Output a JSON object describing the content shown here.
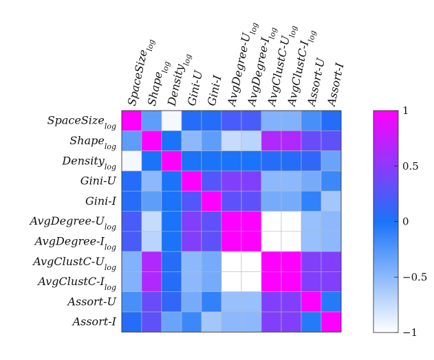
{
  "chart_data": {
    "type": "heatmap",
    "title": "",
    "xlabel": "",
    "ylabel": "",
    "labels": [
      {
        "base": "SpaceSize",
        "sub": "log"
      },
      {
        "base": "Shape",
        "sub": "log"
      },
      {
        "base": "Density",
        "sub": "log"
      },
      {
        "base": "Gini-U",
        "sub": ""
      },
      {
        "base": "Gini-I",
        "sub": ""
      },
      {
        "base": "AvgDegree-U",
        "sub": "log"
      },
      {
        "base": "AvgDegree-I",
        "sub": "log"
      },
      {
        "base": "AvgClustC-U",
        "sub": "log"
      },
      {
        "base": "AvgClustC-I",
        "sub": "log"
      },
      {
        "base": "Assort-U",
        "sub": ""
      },
      {
        "base": "Assort-I",
        "sub": ""
      }
    ],
    "values": [
      [
        1.0,
        -0.3,
        -0.95,
        0.05,
        0.05,
        0.2,
        0.2,
        -0.45,
        -0.45,
        -0.2,
        0.05
      ],
      [
        -0.3,
        1.0,
        0.0,
        -0.5,
        -0.3,
        -0.75,
        -0.7,
        0.65,
        0.65,
        0.35,
        0.3
      ],
      [
        -0.95,
        0.0,
        1.0,
        0.0,
        0.0,
        0.0,
        0.0,
        0.05,
        0.05,
        0.1,
        -0.35
      ],
      [
        0.05,
        -0.5,
        0.0,
        1.0,
        0.25,
        0.45,
        0.45,
        -0.5,
        -0.5,
        -0.4,
        -0.15
      ],
      [
        0.05,
        -0.3,
        0.0,
        0.25,
        1.0,
        0.3,
        0.3,
        -0.4,
        -0.4,
        -0.1,
        -0.6
      ],
      [
        0.2,
        -0.75,
        0.0,
        0.45,
        0.3,
        1.0,
        1.0,
        -1.0,
        -1.0,
        -0.55,
        -0.5
      ],
      [
        0.2,
        -0.7,
        0.0,
        0.45,
        0.3,
        1.0,
        1.0,
        -1.0,
        -1.0,
        -0.55,
        -0.5
      ],
      [
        -0.45,
        0.65,
        0.05,
        -0.5,
        -0.4,
        -1.0,
        -1.0,
        1.0,
        1.0,
        0.45,
        0.45
      ],
      [
        -0.45,
        0.65,
        0.05,
        -0.5,
        -0.4,
        -1.0,
        -1.0,
        1.0,
        1.0,
        0.45,
        0.45
      ],
      [
        -0.2,
        0.35,
        0.1,
        -0.4,
        -0.1,
        -0.55,
        -0.55,
        0.45,
        0.45,
        1.0,
        -0.05
      ],
      [
        0.05,
        0.3,
        -0.35,
        -0.15,
        -0.6,
        -0.5,
        -0.5,
        0.45,
        0.45,
        -0.05,
        1.0
      ]
    ],
    "colorbar": {
      "min": -1,
      "max": 1,
      "ticks": [
        1,
        0.5,
        0,
        -0.5,
        -1
      ],
      "tick_labels": [
        "1",
        "0.5",
        "0",
        "−0.5",
        "−1"
      ],
      "colors": [
        "#ffffff",
        "#1a73f8",
        "#ff00ff"
      ]
    },
    "grid": true,
    "legend": "right"
  }
}
